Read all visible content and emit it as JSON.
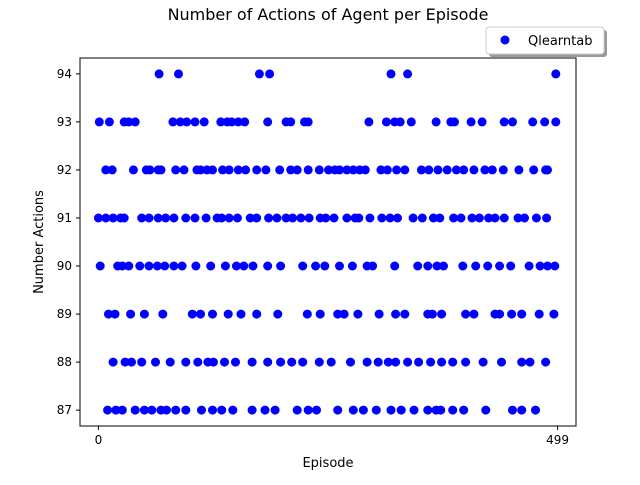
{
  "chart_data": {
    "type": "scatter",
    "title": "Number of Actions of Agent per Episode",
    "xlabel": "Episode",
    "ylabel": "Number Actions",
    "xlim": [
      -20,
      519
    ],
    "ylim": [
      86.67,
      94.33
    ],
    "xticks": [
      0,
      499
    ],
    "yticks": [
      87,
      88,
      89,
      90,
      91,
      92,
      93,
      94
    ],
    "grid": false,
    "legend_placement": "top-right, above axes",
    "series": [
      {
        "name": "Qlearntab",
        "color": "#0000ff",
        "marker": "circle",
        "points": [
          [
            66,
            94
          ],
          [
            87,
            94
          ],
          [
            175,
            94
          ],
          [
            186,
            94
          ],
          [
            318,
            94
          ],
          [
            336,
            94
          ],
          [
            497,
            94
          ],
          [
            1,
            93
          ],
          [
            12,
            93
          ],
          [
            28,
            93
          ],
          [
            33,
            93
          ],
          [
            40,
            93
          ],
          [
            81,
            93
          ],
          [
            89,
            93
          ],
          [
            96,
            93
          ],
          [
            105,
            93
          ],
          [
            115,
            93
          ],
          [
            133,
            93
          ],
          [
            140,
            93
          ],
          [
            145,
            93
          ],
          [
            152,
            93
          ],
          [
            159,
            93
          ],
          [
            184,
            93
          ],
          [
            204,
            93
          ],
          [
            209,
            93
          ],
          [
            224,
            93
          ],
          [
            228,
            93
          ],
          [
            294,
            93
          ],
          [
            313,
            93
          ],
          [
            322,
            93
          ],
          [
            328,
            93
          ],
          [
            340,
            93
          ],
          [
            367,
            93
          ],
          [
            383,
            93
          ],
          [
            387,
            93
          ],
          [
            405,
            93
          ],
          [
            417,
            93
          ],
          [
            441,
            93
          ],
          [
            450,
            93
          ],
          [
            472,
            93
          ],
          [
            485,
            93
          ],
          [
            497,
            93
          ],
          [
            8,
            92
          ],
          [
            15,
            92
          ],
          [
            38,
            92
          ],
          [
            52,
            92
          ],
          [
            56,
            92
          ],
          [
            65,
            92
          ],
          [
            68,
            92
          ],
          [
            84,
            92
          ],
          [
            93,
            92
          ],
          [
            107,
            92
          ],
          [
            111,
            92
          ],
          [
            118,
            92
          ],
          [
            124,
            92
          ],
          [
            135,
            92
          ],
          [
            142,
            92
          ],
          [
            152,
            92
          ],
          [
            160,
            92
          ],
          [
            172,
            92
          ],
          [
            182,
            92
          ],
          [
            197,
            92
          ],
          [
            209,
            92
          ],
          [
            216,
            92
          ],
          [
            228,
            92
          ],
          [
            240,
            92
          ],
          [
            250,
            92
          ],
          [
            257,
            92
          ],
          [
            262,
            92
          ],
          [
            270,
            92
          ],
          [
            277,
            92
          ],
          [
            284,
            92
          ],
          [
            290,
            92
          ],
          [
            307,
            92
          ],
          [
            314,
            92
          ],
          [
            324,
            92
          ],
          [
            333,
            92
          ],
          [
            351,
            92
          ],
          [
            359,
            92
          ],
          [
            369,
            92
          ],
          [
            379,
            92
          ],
          [
            389,
            92
          ],
          [
            397,
            92
          ],
          [
            408,
            92
          ],
          [
            420,
            92
          ],
          [
            428,
            92
          ],
          [
            440,
            92
          ],
          [
            457,
            92
          ],
          [
            473,
            92
          ],
          [
            486,
            92
          ],
          [
            488,
            92
          ],
          [
            0,
            91
          ],
          [
            8,
            91
          ],
          [
            16,
            91
          ],
          [
            24,
            91
          ],
          [
            28,
            91
          ],
          [
            47,
            91
          ],
          [
            55,
            91
          ],
          [
            65,
            91
          ],
          [
            73,
            91
          ],
          [
            82,
            91
          ],
          [
            95,
            91
          ],
          [
            105,
            91
          ],
          [
            117,
            91
          ],
          [
            129,
            91
          ],
          [
            134,
            91
          ],
          [
            142,
            91
          ],
          [
            151,
            91
          ],
          [
            165,
            91
          ],
          [
            172,
            91
          ],
          [
            185,
            91
          ],
          [
            194,
            91
          ],
          [
            204,
            91
          ],
          [
            211,
            91
          ],
          [
            220,
            91
          ],
          [
            229,
            91
          ],
          [
            241,
            91
          ],
          [
            247,
            91
          ],
          [
            256,
            91
          ],
          [
            270,
            91
          ],
          [
            279,
            91
          ],
          [
            283,
            91
          ],
          [
            295,
            91
          ],
          [
            308,
            91
          ],
          [
            317,
            91
          ],
          [
            325,
            91
          ],
          [
            342,
            91
          ],
          [
            352,
            91
          ],
          [
            364,
            91
          ],
          [
            371,
            91
          ],
          [
            386,
            91
          ],
          [
            394,
            91
          ],
          [
            406,
            91
          ],
          [
            414,
            91
          ],
          [
            424,
            91
          ],
          [
            431,
            91
          ],
          [
            441,
            91
          ],
          [
            456,
            91
          ],
          [
            463,
            91
          ],
          [
            476,
            91
          ],
          [
            487,
            91
          ],
          [
            2,
            90
          ],
          [
            21,
            90
          ],
          [
            26,
            90
          ],
          [
            33,
            90
          ],
          [
            45,
            90
          ],
          [
            55,
            90
          ],
          [
            64,
            90
          ],
          [
            72,
            90
          ],
          [
            82,
            90
          ],
          [
            91,
            90
          ],
          [
            106,
            90
          ],
          [
            122,
            90
          ],
          [
            138,
            90
          ],
          [
            150,
            90
          ],
          [
            158,
            90
          ],
          [
            168,
            90
          ],
          [
            184,
            90
          ],
          [
            198,
            90
          ],
          [
            222,
            90
          ],
          [
            236,
            90
          ],
          [
            246,
            90
          ],
          [
            262,
            90
          ],
          [
            276,
            90
          ],
          [
            292,
            90
          ],
          [
            298,
            90
          ],
          [
            322,
            90
          ],
          [
            347,
            90
          ],
          [
            358,
            90
          ],
          [
            368,
            90
          ],
          [
            375,
            90
          ],
          [
            396,
            90
          ],
          [
            410,
            90
          ],
          [
            423,
            90
          ],
          [
            436,
            90
          ],
          [
            448,
            90
          ],
          [
            468,
            90
          ],
          [
            480,
            90
          ],
          [
            488,
            90
          ],
          [
            496,
            90
          ],
          [
            11,
            89
          ],
          [
            18,
            89
          ],
          [
            35,
            89
          ],
          [
            50,
            89
          ],
          [
            70,
            89
          ],
          [
            102,
            89
          ],
          [
            111,
            89
          ],
          [
            124,
            89
          ],
          [
            141,
            89
          ],
          [
            155,
            89
          ],
          [
            172,
            89
          ],
          [
            195,
            89
          ],
          [
            227,
            89
          ],
          [
            241,
            89
          ],
          [
            260,
            89
          ],
          [
            267,
            89
          ],
          [
            282,
            89
          ],
          [
            305,
            89
          ],
          [
            323,
            89
          ],
          [
            333,
            89
          ],
          [
            358,
            89
          ],
          [
            363,
            89
          ],
          [
            373,
            89
          ],
          [
            399,
            89
          ],
          [
            408,
            89
          ],
          [
            431,
            89
          ],
          [
            436,
            89
          ],
          [
            449,
            89
          ],
          [
            460,
            89
          ],
          [
            479,
            89
          ],
          [
            495,
            89
          ],
          [
            16,
            88
          ],
          [
            29,
            88
          ],
          [
            36,
            88
          ],
          [
            47,
            88
          ],
          [
            62,
            88
          ],
          [
            78,
            88
          ],
          [
            95,
            88
          ],
          [
            108,
            88
          ],
          [
            119,
            88
          ],
          [
            125,
            88
          ],
          [
            137,
            88
          ],
          [
            149,
            88
          ],
          [
            167,
            88
          ],
          [
            184,
            88
          ],
          [
            198,
            88
          ],
          [
            210,
            88
          ],
          [
            222,
            88
          ],
          [
            240,
            88
          ],
          [
            253,
            88
          ],
          [
            274,
            88
          ],
          [
            292,
            88
          ],
          [
            304,
            88
          ],
          [
            315,
            88
          ],
          [
            323,
            88
          ],
          [
            336,
            88
          ],
          [
            348,
            88
          ],
          [
            361,
            88
          ],
          [
            373,
            88
          ],
          [
            385,
            88
          ],
          [
            399,
            88
          ],
          [
            418,
            88
          ],
          [
            438,
            88
          ],
          [
            460,
            88
          ],
          [
            469,
            88
          ],
          [
            486,
            88
          ],
          [
            10,
            87
          ],
          [
            19,
            87
          ],
          [
            26,
            87
          ],
          [
            40,
            87
          ],
          [
            50,
            87
          ],
          [
            58,
            87
          ],
          [
            68,
            87
          ],
          [
            74,
            87
          ],
          [
            84,
            87
          ],
          [
            95,
            87
          ],
          [
            112,
            87
          ],
          [
            124,
            87
          ],
          [
            134,
            87
          ],
          [
            146,
            87
          ],
          [
            167,
            87
          ],
          [
            181,
            87
          ],
          [
            192,
            87
          ],
          [
            216,
            87
          ],
          [
            228,
            87
          ],
          [
            237,
            87
          ],
          [
            260,
            87
          ],
          [
            277,
            87
          ],
          [
            288,
            87
          ],
          [
            302,
            87
          ],
          [
            318,
            87
          ],
          [
            329,
            87
          ],
          [
            343,
            87
          ],
          [
            358,
            87
          ],
          [
            367,
            87
          ],
          [
            372,
            87
          ],
          [
            385,
            87
          ],
          [
            397,
            87
          ],
          [
            421,
            87
          ],
          [
            450,
            87
          ],
          [
            460,
            87
          ],
          [
            475,
            87
          ]
        ]
      }
    ]
  }
}
